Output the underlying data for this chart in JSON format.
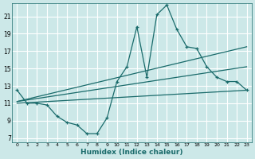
{
  "xlabel": "Humidex (Indice chaleur)",
  "bg_color": "#cce8e8",
  "grid_color": "#ffffff",
  "line_color": "#1a6b6b",
  "xlim": [
    -0.5,
    23.5
  ],
  "ylim": [
    6.5,
    22.5
  ],
  "yticks": [
    7,
    9,
    11,
    13,
    15,
    17,
    19,
    21
  ],
  "xticks": [
    0,
    1,
    2,
    3,
    4,
    5,
    6,
    7,
    8,
    9,
    10,
    11,
    12,
    13,
    14,
    15,
    16,
    17,
    18,
    19,
    20,
    21,
    22,
    23
  ],
  "line1_x": [
    0,
    1,
    2,
    3,
    4,
    5,
    6,
    7,
    8,
    9,
    10,
    11,
    12,
    13,
    14,
    15,
    16,
    17,
    18,
    19,
    20,
    21,
    22,
    23
  ],
  "line1_y": [
    12.5,
    11.0,
    11.0,
    10.8,
    9.5,
    8.8,
    8.5,
    7.5,
    7.5,
    9.3,
    13.5,
    15.2,
    19.8,
    14.0,
    21.2,
    22.3,
    19.5,
    17.5,
    17.3,
    15.2,
    14.0,
    13.5,
    13.5,
    12.5
  ],
  "line2_x": [
    0,
    23
  ],
  "line2_y": [
    11.2,
    17.5
  ],
  "line3_x": [
    0,
    23
  ],
  "line3_y": [
    11.2,
    15.2
  ],
  "line4_x": [
    0,
    23
  ],
  "line4_y": [
    11.0,
    12.5
  ]
}
